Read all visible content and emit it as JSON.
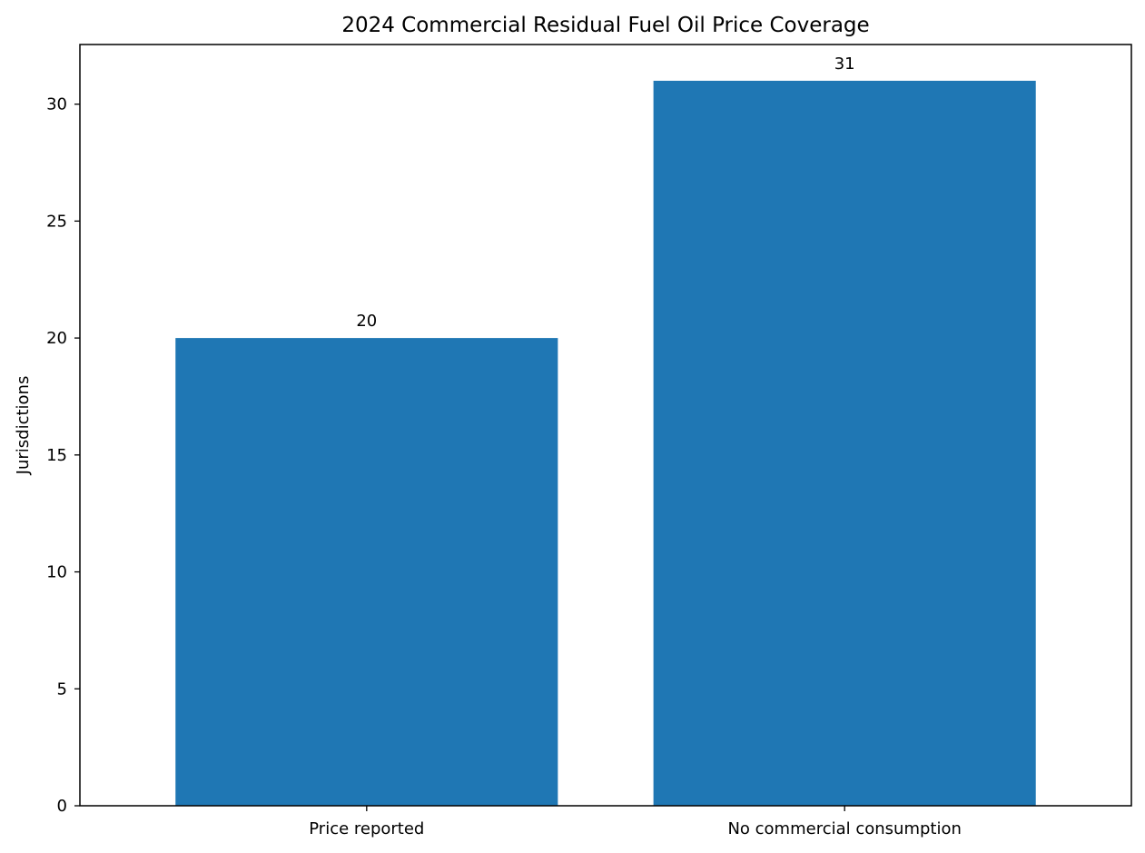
{
  "chart_data": {
    "type": "bar",
    "title": "2024 Commercial Residual Fuel Oil Price Coverage",
    "xlabel": "",
    "ylabel": "Jurisdictions",
    "categories": [
      "Price reported",
      "No commercial consumption"
    ],
    "values": [
      20,
      31
    ],
    "data_labels": [
      "20",
      "31"
    ],
    "ylim": [
      0,
      32.55
    ],
    "yticks": [
      0,
      5,
      10,
      15,
      20,
      25,
      30
    ],
    "bar_color": "#1f77b4",
    "grid": false,
    "legend": "none"
  }
}
